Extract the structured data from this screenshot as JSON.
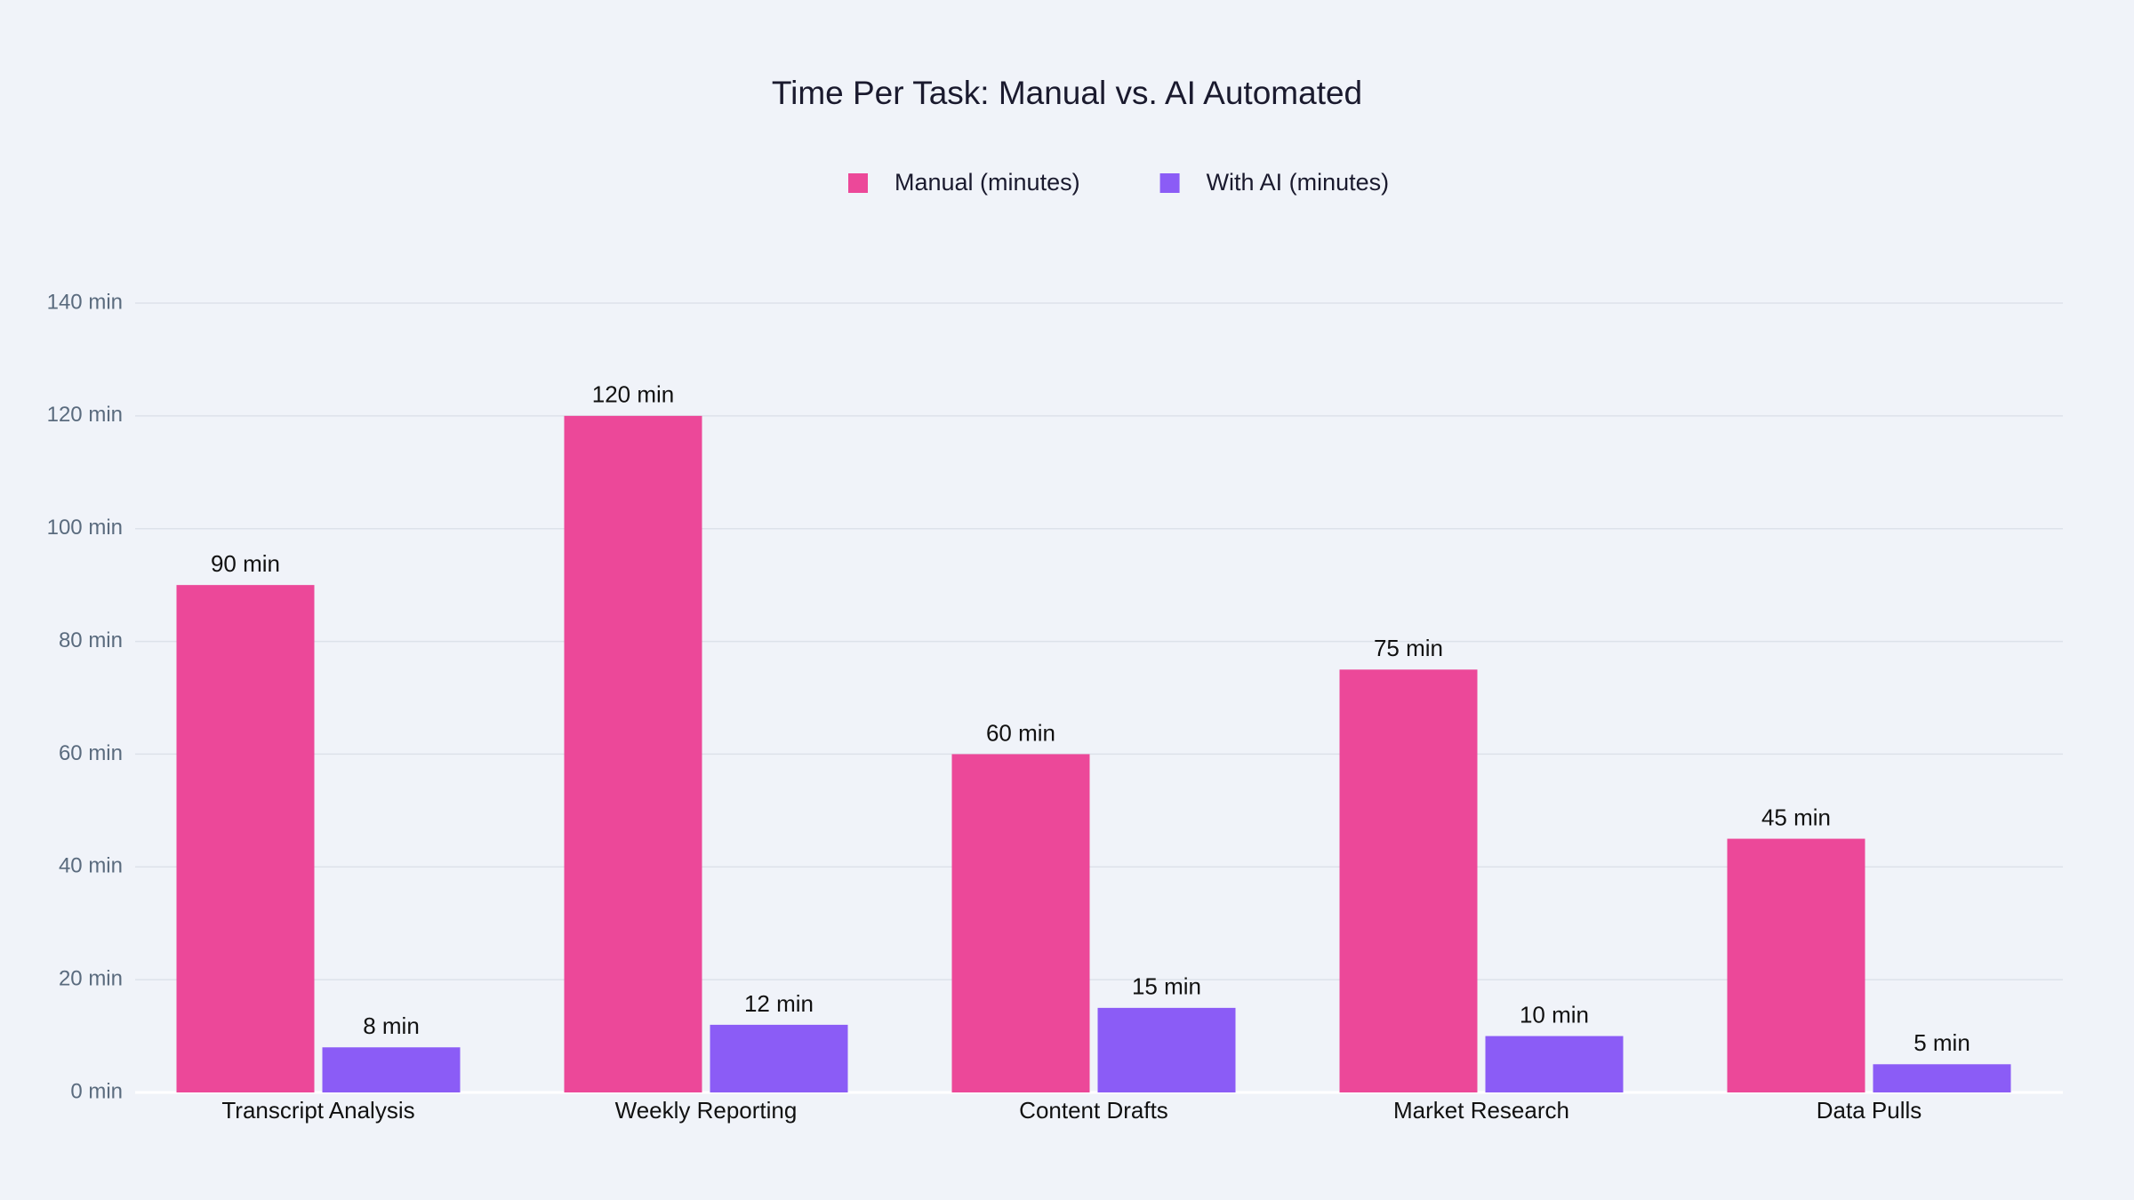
{
  "chart_data": {
    "type": "bar",
    "title": "Time Per Task: Manual vs. AI Automated",
    "categories": [
      "Transcript Analysis",
      "Weekly Reporting",
      "Content Drafts",
      "Market Research",
      "Data Pulls"
    ],
    "series": [
      {
        "name": "Manual (minutes)",
        "color": "#ec4899",
        "values": [
          90,
          120,
          60,
          75,
          45
        ],
        "value_labels": [
          "90 min",
          "120 min",
          "60 min",
          "75 min",
          "45 min"
        ]
      },
      {
        "name": "With AI (minutes)",
        "color": "#8b5cf6",
        "values": [
          8,
          12,
          15,
          10,
          5
        ],
        "value_labels": [
          "8 min",
          "12 min",
          "15 min",
          "10 min",
          "5 min"
        ]
      }
    ],
    "ylim": [
      0,
      140
    ],
    "yticks": [
      {
        "value": 0,
        "label": "0 min"
      },
      {
        "value": 20,
        "label": "20 min"
      },
      {
        "value": 40,
        "label": "40 min"
      },
      {
        "value": 60,
        "label": "60 min"
      },
      {
        "value": 80,
        "label": "80 min"
      },
      {
        "value": 100,
        "label": "100 min"
      },
      {
        "value": 120,
        "label": "120 min"
      },
      {
        "value": 140,
        "label": "140 min"
      }
    ],
    "grid": true,
    "legend": "top"
  }
}
